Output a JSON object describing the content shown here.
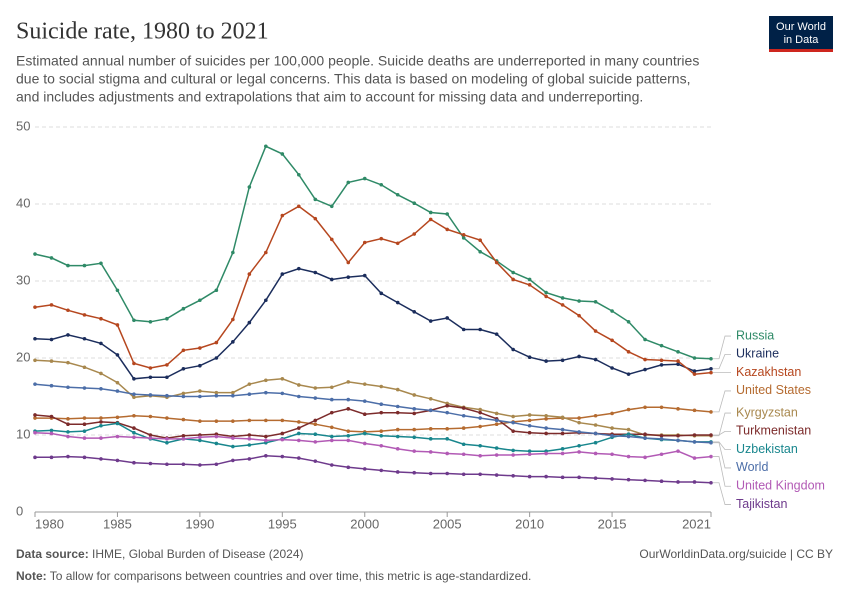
{
  "header": {
    "logo": [
      "Our World",
      "in Data"
    ]
  },
  "chart_data": {
    "type": "line",
    "title": "Suicide rate, 1980 to 2021",
    "subtitle": [
      "Estimated annual number of suicides per 100,000 people. Suicide deaths are underreported in many countries",
      "due to social stigma and cultural or legal concerns. This data is based on modeling of global suicide patterns,",
      "and includes adjustments and extrapolations that aim to account for missing data and underreporting."
    ],
    "x": [
      1980,
      1981,
      1982,
      1983,
      1984,
      1985,
      1986,
      1987,
      1988,
      1989,
      1990,
      1991,
      1992,
      1993,
      1994,
      1995,
      1996,
      1997,
      1998,
      1999,
      2000,
      2001,
      2002,
      2003,
      2004,
      2005,
      2006,
      2007,
      2008,
      2009,
      2010,
      2011,
      2012,
      2013,
      2014,
      2015,
      2016,
      2017,
      2018,
      2019,
      2020,
      2021
    ],
    "xlim": [
      1980,
      2021
    ],
    "xticks": [
      1980,
      1985,
      1990,
      1995,
      2000,
      2005,
      2010,
      2015,
      2021
    ],
    "ylim": [
      0,
      50
    ],
    "yticks": [
      0,
      10,
      20,
      30,
      40,
      50
    ],
    "grid": true,
    "series": [
      {
        "name": "Russia",
        "color": "#2f8a67",
        "values": [
          33.5,
          33,
          32,
          32,
          32.3,
          28.8,
          24.9,
          24.7,
          25.1,
          26.4,
          27.5,
          28.8,
          33.7,
          42.2,
          47.5,
          46.5,
          43.8,
          40.6,
          39.7,
          42.8,
          43.3,
          42.5,
          41.2,
          40.1,
          38.9,
          38.7,
          35.6,
          33.8,
          32.6,
          31.1,
          30.2,
          28.5,
          27.8,
          27.4,
          27.3,
          26.1,
          24.7,
          22.4,
          21.6,
          20.8,
          20,
          19.9
        ]
      },
      {
        "name": "Ukraine",
        "color": "#1b2d5c",
        "values": [
          22.5,
          22.4,
          23,
          22.5,
          21.9,
          20.4,
          17.3,
          17.5,
          17.5,
          18.6,
          19,
          20,
          22.1,
          24.6,
          27.5,
          30.9,
          31.6,
          31.1,
          30.2,
          30.5,
          30.7,
          28.4,
          27.2,
          26,
          24.8,
          25.2,
          23.7,
          23.7,
          23.1,
          21.1,
          20.1,
          19.6,
          19.7,
          20.2,
          19.8,
          18.7,
          17.9,
          18.5,
          19.1,
          19.2,
          18.3,
          18.6
        ]
      },
      {
        "name": "Kazakhstan",
        "color": "#b6471f",
        "values": [
          26.6,
          26.9,
          26.2,
          25.6,
          25.1,
          24.3,
          19.3,
          18.7,
          19.1,
          21,
          21.3,
          22,
          25,
          30.9,
          33.7,
          38.5,
          39.7,
          38.1,
          35.4,
          32.4,
          35,
          35.5,
          34.9,
          36.1,
          38,
          36.7,
          36,
          35.3,
          32.4,
          30.2,
          29.5,
          28,
          26.9,
          25.5,
          23.5,
          22.3,
          20.8,
          19.8,
          19.7,
          19.6,
          17.9,
          18.1
        ]
      },
      {
        "name": "United States",
        "color": "#b56b30",
        "values": [
          12.2,
          12.2,
          12.1,
          12.2,
          12.2,
          12.3,
          12.5,
          12.4,
          12.2,
          12,
          11.8,
          11.8,
          11.8,
          11.9,
          11.9,
          11.9,
          11.7,
          11.4,
          11,
          10.5,
          10.4,
          10.5,
          10.7,
          10.7,
          10.8,
          10.8,
          10.9,
          11.1,
          11.4,
          11.7,
          11.9,
          12.1,
          12.2,
          12.2,
          12.5,
          12.8,
          13.3,
          13.6,
          13.6,
          13.4,
          13.2,
          13
        ]
      },
      {
        "name": "Kyrgyzstan",
        "color": "#a8884e",
        "values": [
          19.7,
          19.6,
          19.4,
          18.8,
          18,
          16.8,
          14.9,
          15.1,
          14.9,
          15.4,
          15.7,
          15.5,
          15.5,
          16.6,
          17.1,
          17.3,
          16.5,
          16.1,
          16.2,
          16.9,
          16.6,
          16.3,
          15.9,
          15.2,
          14.7,
          14.1,
          13.6,
          13.3,
          12.8,
          12.4,
          12.6,
          12.5,
          12.3,
          11.6,
          11.3,
          10.9,
          10.7,
          10,
          10,
          10,
          9.9,
          9.9
        ]
      },
      {
        "name": "Turkmenistan",
        "color": "#7c2b2b",
        "values": [
          12.6,
          12.4,
          11.4,
          11.4,
          11.7,
          11.6,
          10.9,
          10,
          9.6,
          9.9,
          10,
          10.1,
          9.8,
          10,
          9.8,
          10.2,
          10.9,
          11.9,
          12.9,
          13.4,
          12.7,
          12.9,
          12.9,
          12.8,
          13.2,
          13.8,
          13.5,
          12.9,
          12.1,
          10.5,
          10.3,
          10.2,
          10.2,
          10.3,
          10.2,
          10.1,
          10.1,
          10.1,
          9.9,
          9.9,
          10,
          10
        ]
      },
      {
        "name": "Uzbekistan",
        "color": "#18868d",
        "values": [
          10.5,
          10.6,
          10.4,
          10.5,
          11.2,
          11.5,
          10.3,
          9.5,
          9,
          9.5,
          9.3,
          8.9,
          8.5,
          8.7,
          9,
          9.5,
          10.2,
          10.1,
          9.8,
          9.9,
          10.2,
          9.9,
          9.8,
          9.7,
          9.5,
          9.5,
          8.8,
          8.6,
          8.3,
          8,
          7.9,
          7.9,
          8.2,
          8.6,
          9,
          9.7,
          10.1,
          9.6,
          9.4,
          9.3,
          9.1,
          9.1
        ]
      },
      {
        "name": "World",
        "color": "#4c6ea8",
        "values": [
          16.6,
          16.4,
          16.2,
          16.1,
          16,
          15.7,
          15.3,
          15.2,
          15.1,
          15,
          15,
          15.1,
          15.1,
          15.3,
          15.5,
          15.4,
          15,
          14.8,
          14.6,
          14.6,
          14.4,
          14,
          13.7,
          13.4,
          13.2,
          12.9,
          12.5,
          12.2,
          11.9,
          11.6,
          11.2,
          10.9,
          10.7,
          10.4,
          10.2,
          9.9,
          9.8,
          9.6,
          9.5,
          9.3,
          9.1,
          9
        ]
      },
      {
        "name": "United Kingdom",
        "color": "#b25ab5",
        "values": [
          10.3,
          10.2,
          9.8,
          9.6,
          9.6,
          9.8,
          9.7,
          9.6,
          9.5,
          9.5,
          9.7,
          9.8,
          9.6,
          9.5,
          9.3,
          9.4,
          9.3,
          9.1,
          9.3,
          9.3,
          8.9,
          8.6,
          8.2,
          7.9,
          7.8,
          7.6,
          7.5,
          7.3,
          7.4,
          7.4,
          7.5,
          7.6,
          7.6,
          7.8,
          7.6,
          7.5,
          7.2,
          7.1,
          7.5,
          7.9,
          7,
          7.2
        ]
      },
      {
        "name": "Tajikistan",
        "color": "#6e3a8c",
        "values": [
          7.1,
          7.1,
          7.2,
          7.1,
          6.9,
          6.7,
          6.4,
          6.3,
          6.2,
          6.2,
          6.1,
          6.2,
          6.7,
          6.9,
          7.3,
          7.2,
          7,
          6.6,
          6.1,
          5.8,
          5.6,
          5.4,
          5.2,
          5.1,
          5,
          5,
          4.9,
          4.9,
          4.8,
          4.7,
          4.6,
          4.6,
          4.5,
          4.5,
          4.4,
          4.3,
          4.2,
          4.1,
          4,
          3.9,
          3.9,
          3.8
        ]
      }
    ]
  },
  "footer": {
    "source_label": "Data source:",
    "source": "IHME, Global Burden of Disease (2024)",
    "url": "OurWorldinData.org/suicide | CC BY",
    "note_label": "Note:",
    "note": "To allow for comparisons between countries and over time, this metric is age-standardized."
  }
}
